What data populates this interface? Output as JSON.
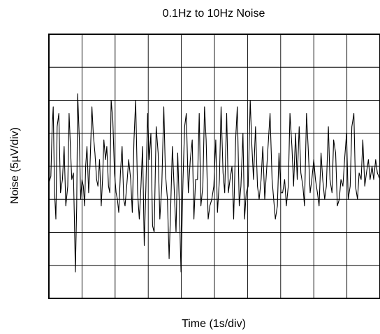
{
  "chart_data": {
    "type": "line",
    "title": "0.1Hz to 10Hz Noise",
    "xlabel": "Time (1s/div)",
    "ylabel": "Noise (5µV/div)",
    "xlim": [
      0,
      10
    ],
    "ylim": [
      -20,
      20
    ],
    "x_divisions": 10,
    "y_divisions": 8,
    "grid": true,
    "series": [
      {
        "color": "#000000",
        "x": [
          0.0,
          0.06,
          0.1,
          0.13,
          0.17,
          0.21,
          0.25,
          0.3,
          0.35,
          0.41,
          0.46,
          0.51,
          0.57,
          0.61,
          0.65,
          0.69,
          0.74,
          0.77,
          0.8,
          0.84,
          0.87,
          0.92,
          0.96,
          1.0,
          1.04,
          1.08,
          1.11,
          1.15,
          1.2,
          1.24,
          1.3,
          1.34,
          1.39,
          1.44,
          1.48,
          1.53,
          1.58,
          1.62,
          1.66,
          1.71,
          1.75,
          1.8,
          1.84,
          1.88,
          1.93,
          1.98,
          2.03,
          2.07,
          2.11,
          2.16,
          2.21,
          2.26,
          2.3,
          2.35,
          2.41,
          2.47,
          2.52,
          2.57,
          2.62,
          2.68,
          2.73,
          2.78,
          2.83,
          2.88,
          2.93,
          2.98,
          3.03,
          3.08,
          3.13,
          3.18,
          3.24,
          3.3,
          3.35,
          3.41,
          3.47,
          3.52,
          3.58,
          3.63,
          3.68,
          3.73,
          3.79,
          3.84,
          3.89,
          3.94,
          3.99,
          4.05,
          4.1,
          4.15,
          4.21,
          4.27,
          4.33,
          4.38,
          4.43,
          4.49,
          4.54,
          4.59,
          4.65,
          4.7,
          4.75,
          4.81,
          4.86,
          4.92,
          4.98,
          5.04,
          5.09,
          5.15,
          5.2,
          5.26,
          5.31,
          5.37,
          5.42,
          5.47,
          5.53,
          5.58,
          5.64,
          5.69,
          5.75,
          5.8,
          5.86,
          5.91,
          5.96,
          6.02,
          6.08,
          6.13,
          6.18,
          6.24,
          6.3,
          6.35,
          6.41,
          6.46,
          6.52,
          6.57,
          6.63,
          6.68,
          6.74,
          6.79,
          6.84,
          6.9,
          6.95,
          7.01,
          7.06,
          7.12,
          7.17,
          7.23,
          7.28,
          7.34,
          7.39,
          7.45,
          7.5,
          7.56,
          7.61,
          7.67,
          7.72,
          7.78,
          7.83,
          7.89,
          7.94,
          8.0,
          8.05,
          8.11,
          8.16,
          8.22,
          8.27,
          8.33,
          8.38,
          8.44,
          8.49,
          8.55,
          8.6,
          8.66,
          8.71,
          8.77,
          8.82,
          8.88,
          8.93,
          8.99,
          9.04,
          9.1,
          9.15,
          9.21,
          9.26,
          9.32,
          9.37,
          9.43,
          9.48,
          9.54,
          9.59,
          9.65,
          9.7,
          9.76,
          9.81,
          9.87,
          9.92,
          10.0
        ],
        "y": [
          -2.5,
          -1.5,
          6,
          9,
          -4,
          -8,
          6,
          8,
          -4,
          -2,
          3,
          -6,
          -3,
          8,
          3,
          -2,
          -1,
          -8,
          -16,
          -6,
          11,
          4,
          -5,
          -2,
          -3,
          -6,
          0,
          3,
          -4,
          0,
          9,
          5,
          2,
          -2,
          -3,
          1,
          -6,
          -2,
          4,
          1,
          3,
          -3,
          -4,
          10,
          7,
          -1,
          -4,
          -5,
          -7,
          -1,
          3,
          -5,
          -6,
          -3,
          1,
          -2,
          -7,
          4,
          10,
          -4,
          -8,
          -3,
          3,
          -12,
          -3,
          8,
          1,
          5,
          -9,
          -10,
          6,
          2,
          -8,
          -3,
          9,
          -1,
          -5,
          -14,
          -6,
          3,
          -4,
          -10,
          2,
          -6,
          -16,
          -2,
          6,
          8,
          -4,
          1,
          4,
          -8,
          -2,
          -2,
          8,
          -6,
          -3,
          9,
          4,
          -8,
          -6,
          -5,
          -3,
          4,
          -7,
          -2,
          9,
          -1,
          -4,
          8,
          -4,
          -2,
          0,
          -8,
          4,
          9,
          -6,
          -3,
          5,
          -8,
          -4,
          -3,
          10,
          3,
          -2,
          6,
          -3,
          -5,
          -2,
          3,
          -5,
          -1,
          4,
          8,
          -2,
          -5,
          -8,
          -6,
          2,
          -4,
          -4,
          -2,
          -6,
          -3,
          8,
          3,
          -3,
          5,
          -2,
          6,
          -1,
          -3,
          -6,
          8,
          3,
          -4,
          -2,
          1,
          -2,
          -4,
          -6,
          2,
          -2,
          -5,
          -3,
          6,
          -2,
          -4,
          4,
          2,
          -6,
          -5,
          -2,
          -3,
          1,
          5,
          -5,
          -3,
          6,
          8,
          -3,
          -5,
          -1,
          -2,
          4,
          -3,
          -1,
          1,
          -2,
          0,
          -2,
          1,
          -1,
          -2
        ]
      }
    ]
  }
}
